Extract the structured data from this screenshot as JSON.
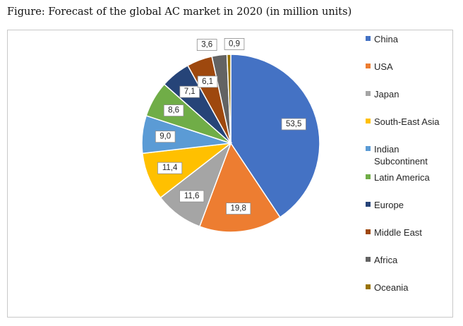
{
  "figure": {
    "title": "Figure: Forecast of the global AC market in 2020 (in million units)"
  },
  "chart_data": {
    "type": "pie",
    "title": "",
    "legend_position": "right",
    "categories": [
      "China",
      "USA",
      "Japan",
      "South-East Asia",
      "Indian Subcontinent",
      "Latin America",
      "Europe",
      "Middle East",
      "Africa",
      "Oceania"
    ],
    "values": [
      53.5,
      19.8,
      11.6,
      11.4,
      9.0,
      8.6,
      7.1,
      6.1,
      3.6,
      0.9
    ],
    "labels": [
      "53,5",
      "19,8",
      "11,6",
      "11,4",
      "9,0",
      "8,6",
      "7,1",
      "6,1",
      "3,6",
      "0,9"
    ],
    "legend_labels": [
      "China",
      "USA",
      "Japan",
      "South-East Asia",
      "Indian\nSubcontinent",
      "Latin America",
      "Europe",
      "Middle East",
      "Africa",
      "Oceania"
    ],
    "colors": [
      "#4472C4",
      "#ED7D31",
      "#A5A5A5",
      "#FFC000",
      "#5B9BD5",
      "#70AD47",
      "#264478",
      "#9E480E",
      "#636363",
      "#997300"
    ]
  }
}
